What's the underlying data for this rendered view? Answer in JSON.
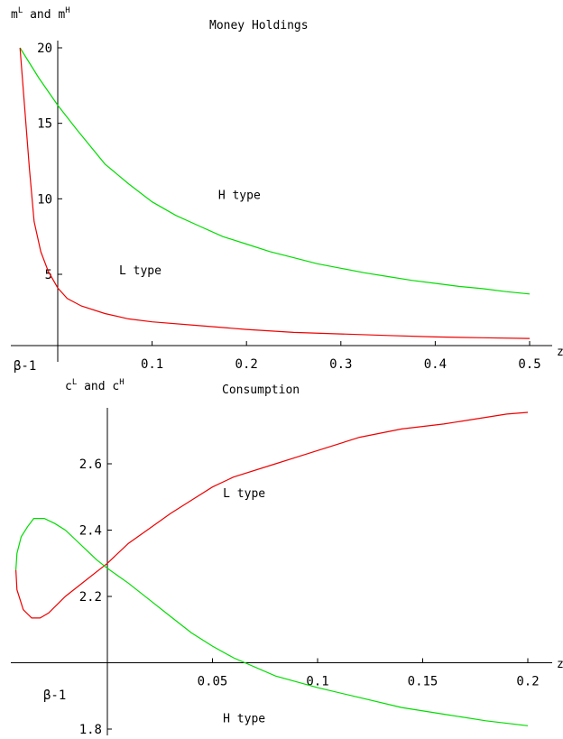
{
  "chart_data": [
    {
      "type": "line",
      "title": "Money Holdings",
      "ylabel": {
        "a": "m",
        "a_sup": "L",
        "mid": " and ",
        "b": "m",
        "b_sup": "H"
      },
      "xlabel": "z",
      "beta_label": "β-1",
      "xlim": [
        -0.05,
        0.52
      ],
      "ylim": [
        -0.6,
        21.5
      ],
      "x_ticks": [
        0.1,
        0.2,
        0.3,
        0.4,
        0.5
      ],
      "x_tick_labels": [
        "0.1",
        "0.2",
        "0.3",
        "0.4",
        "0.5"
      ],
      "y_ticks": [
        5,
        10,
        15,
        20
      ],
      "y_tick_labels": [
        "5",
        "10",
        "15",
        "20"
      ],
      "annotations": [
        {
          "text": "H type",
          "x": 0.17,
          "y": 10.0
        },
        {
          "text": "L type",
          "x": 0.065,
          "y": 5.0
        }
      ],
      "series": [
        {
          "color": "#00dd00",
          "points": [
            [
              -0.04,
              20
            ],
            [
              -0.02,
              18.0
            ],
            [
              0.0,
              16.2
            ],
            [
              0.02,
              14.6
            ],
            [
              0.05,
              12.3
            ],
            [
              0.075,
              11.0
            ],
            [
              0.1,
              9.8
            ],
            [
              0.125,
              8.9
            ],
            [
              0.15,
              8.2
            ],
            [
              0.175,
              7.5
            ],
            [
              0.2,
              7.0
            ],
            [
              0.225,
              6.5
            ],
            [
              0.25,
              6.1
            ],
            [
              0.275,
              5.7
            ],
            [
              0.3,
              5.4
            ],
            [
              0.325,
              5.1
            ],
            [
              0.35,
              4.85
            ],
            [
              0.375,
              4.6
            ],
            [
              0.4,
              4.4
            ],
            [
              0.425,
              4.2
            ],
            [
              0.45,
              4.05
            ],
            [
              0.475,
              3.85
            ],
            [
              0.5,
              3.7
            ]
          ]
        },
        {
          "color": "#ee0000",
          "points": [
            [
              -0.04,
              20
            ],
            [
              -0.035,
              16.0
            ],
            [
              -0.03,
              12.0
            ],
            [
              -0.025,
              8.5
            ],
            [
              -0.018,
              6.5
            ],
            [
              -0.01,
              5.2
            ],
            [
              0.0,
              4.1
            ],
            [
              0.01,
              3.4
            ],
            [
              0.025,
              2.9
            ],
            [
              0.05,
              2.4
            ],
            [
              0.075,
              2.05
            ],
            [
              0.1,
              1.85
            ],
            [
              0.15,
              1.6
            ],
            [
              0.2,
              1.35
            ],
            [
              0.25,
              1.15
            ],
            [
              0.3,
              1.05
            ],
            [
              0.35,
              0.95
            ],
            [
              0.4,
              0.85
            ],
            [
              0.45,
              0.8
            ],
            [
              0.5,
              0.75
            ]
          ]
        }
      ]
    },
    {
      "type": "line",
      "title": "Consumption",
      "ylabel": {
        "a": "c",
        "a_sup": "L",
        "mid": " and ",
        "b": "c",
        "b_sup": "H"
      },
      "xlabel": "z",
      "beta_label": "β-1",
      "xlim": [
        -0.045,
        0.205
      ],
      "ylim": [
        1.795,
        2.78
      ],
      "x_axis_y": 2.0,
      "x_ticks": [
        0.05,
        0.1,
        0.15,
        0.2
      ],
      "x_tick_labels": [
        "0.05",
        "0.1",
        "0.15",
        "0.2"
      ],
      "y_ticks": [
        1.8,
        2.2,
        2.4,
        2.6
      ],
      "y_tick_labels": [
        "1.8",
        "2.2",
        "2.4",
        "2.6"
      ],
      "annotations": [
        {
          "text": "L type",
          "x": 0.055,
          "y": 2.5
        },
        {
          "text": "H type",
          "x": 0.055,
          "y": 1.82
        }
      ],
      "series": [
        {
          "color": "#ee0000",
          "points": [
            [
              0.2,
              2.755
            ],
            [
              0.19,
              2.75
            ],
            [
              0.175,
              2.735
            ],
            [
              0.16,
              2.72
            ],
            [
              0.14,
              2.705
            ],
            [
              0.12,
              2.68
            ],
            [
              0.1,
              2.64
            ],
            [
              0.08,
              2.6
            ],
            [
              0.06,
              2.56
            ],
            [
              0.05,
              2.53
            ],
            [
              0.04,
              2.49
            ],
            [
              0.03,
              2.45
            ],
            [
              0.02,
              2.405
            ],
            [
              0.01,
              2.36
            ],
            [
              0.0,
              2.3
            ],
            [
              -0.01,
              2.25
            ],
            [
              -0.02,
              2.2
            ],
            [
              -0.028,
              2.15
            ],
            [
              -0.032,
              2.135
            ],
            [
              -0.036,
              2.135
            ],
            [
              -0.04,
              2.16
            ],
            [
              -0.043,
              2.22
            ],
            [
              -0.0435,
              2.28
            ]
          ]
        },
        {
          "color": "#00dd00",
          "points": [
            [
              -0.0435,
              2.28
            ],
            [
              -0.043,
              2.33
            ],
            [
              -0.041,
              2.38
            ],
            [
              -0.038,
              2.41
            ],
            [
              -0.035,
              2.435
            ],
            [
              -0.03,
              2.435
            ],
            [
              -0.025,
              2.42
            ],
            [
              -0.02,
              2.4
            ],
            [
              -0.015,
              2.37
            ],
            [
              -0.01,
              2.34
            ],
            [
              -0.005,
              2.31
            ],
            [
              0.0,
              2.285
            ],
            [
              0.01,
              2.24
            ],
            [
              0.02,
              2.19
            ],
            [
              0.03,
              2.14
            ],
            [
              0.04,
              2.09
            ],
            [
              0.05,
              2.05
            ],
            [
              0.06,
              2.015
            ],
            [
              0.08,
              1.96
            ],
            [
              0.1,
              1.925
            ],
            [
              0.12,
              1.895
            ],
            [
              0.14,
              1.865
            ],
            [
              0.16,
              1.845
            ],
            [
              0.18,
              1.825
            ],
            [
              0.2,
              1.81
            ]
          ]
        }
      ]
    }
  ]
}
